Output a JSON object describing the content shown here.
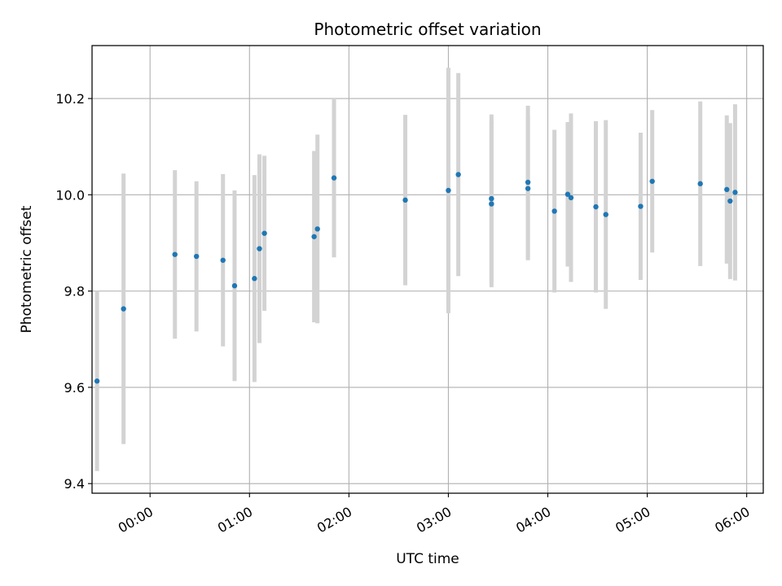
{
  "chart_data": {
    "type": "scatter",
    "title": "Photometric offset variation",
    "xlabel": "UTC time",
    "ylabel": "Photometric offset",
    "x_ticks": [
      "00:00",
      "01:00",
      "02:00",
      "03:00",
      "04:00",
      "05:00",
      "06:00"
    ],
    "y_ticks": [
      "9.4",
      "9.6",
      "9.8",
      "10.0",
      "10.2"
    ],
    "xlim": [
      "-00:35",
      "06:10"
    ],
    "ylim": [
      9.38,
      10.31
    ],
    "grid": true,
    "colors": {
      "marker": "#1f77b4",
      "errorbar": "#d3d3d3",
      "grid": "#b0b0b0"
    },
    "points": [
      {
        "x": "-00:32",
        "y": 9.613,
        "yerr": 0.187
      },
      {
        "x": "-00:16",
        "y": 9.763,
        "yerr": 0.281
      },
      {
        "x": "00:15",
        "y": 9.876,
        "yerr": 0.175
      },
      {
        "x": "00:28",
        "y": 9.872,
        "yerr": 0.156
      },
      {
        "x": "00:44",
        "y": 9.864,
        "yerr": 0.179
      },
      {
        "x": "00:51",
        "y": 9.811,
        "yerr": 0.198
      },
      {
        "x": "01:03",
        "y": 9.826,
        "yerr": 0.215
      },
      {
        "x": "01:06",
        "y": 9.888,
        "yerr": 0.196
      },
      {
        "x": "01:09",
        "y": 9.92,
        "yerr": 0.161
      },
      {
        "x": "01:39",
        "y": 9.913,
        "yerr": 0.178
      },
      {
        "x": "01:41",
        "y": 9.929,
        "yerr": 0.196
      },
      {
        "x": "01:51",
        "y": 10.035,
        "yerr": 0.165
      },
      {
        "x": "02:34",
        "y": 9.989,
        "yerr": 0.177
      },
      {
        "x": "03:00",
        "y": 10.009,
        "yerr": 0.255
      },
      {
        "x": "03:06",
        "y": 10.042,
        "yerr": 0.211
      },
      {
        "x": "03:26",
        "y": 9.992,
        "yerr": 0.175
      },
      {
        "x": "03:26",
        "y": 9.981,
        "yerr": 0.173
      },
      {
        "x": "03:48",
        "y": 10.026,
        "yerr": 0.159
      },
      {
        "x": "03:48",
        "y": 10.013,
        "yerr": 0.149
      },
      {
        "x": "04:04",
        "y": 9.966,
        "yerr": 0.169
      },
      {
        "x": "04:12",
        "y": 10.001,
        "yerr": 0.15
      },
      {
        "x": "04:14",
        "y": 9.994,
        "yerr": 0.175
      },
      {
        "x": "04:29",
        "y": 9.975,
        "yerr": 0.178
      },
      {
        "x": "04:35",
        "y": 9.959,
        "yerr": 0.196
      },
      {
        "x": "04:56",
        "y": 9.976,
        "yerr": 0.153
      },
      {
        "x": "05:03",
        "y": 10.028,
        "yerr": 0.148
      },
      {
        "x": "05:32",
        "y": 10.023,
        "yerr": 0.171
      },
      {
        "x": "05:48",
        "y": 10.011,
        "yerr": 0.154
      },
      {
        "x": "05:50",
        "y": 9.987,
        "yerr": 0.162
      },
      {
        "x": "05:53",
        "y": 10.005,
        "yerr": 0.183
      }
    ]
  }
}
